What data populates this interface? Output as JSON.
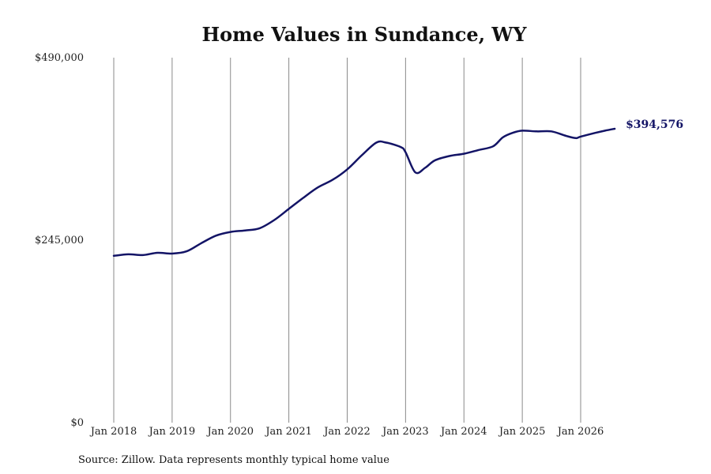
{
  "chart_data": {
    "type": "line",
    "title": "Home Values in Sundance, WY",
    "xlabel": "",
    "ylabel": "",
    "ylim": [
      0,
      490000
    ],
    "y_ticks": [
      {
        "value": 0,
        "label": "$0"
      },
      {
        "value": 245000,
        "label": "$245,000"
      },
      {
        "value": 490000,
        "label": "$490,000"
      }
    ],
    "x_range": [
      2018.0,
      2026.583
    ],
    "x_ticks": [
      {
        "value": 2018,
        "label": "Jan 2018"
      },
      {
        "value": 2019,
        "label": "Jan 2019"
      },
      {
        "value": 2020,
        "label": "Jan 2020"
      },
      {
        "value": 2021,
        "label": "Jan 2021"
      },
      {
        "value": 2022,
        "label": "Jan 2022"
      },
      {
        "value": 2023,
        "label": "Jan 2023"
      },
      {
        "value": 2024,
        "label": "Jan 2024"
      },
      {
        "value": 2025,
        "label": "Jan 2025"
      },
      {
        "value": 2026,
        "label": "Jan 2026"
      }
    ],
    "grid": {
      "vertical": true,
      "horizontal": false
    },
    "series": [
      {
        "name": "",
        "color": "#131466",
        "x": [
          2018.0,
          2018.25,
          2018.5,
          2018.75,
          2019.0,
          2019.25,
          2019.5,
          2019.75,
          2020.0,
          2020.25,
          2020.5,
          2020.75,
          2021.0,
          2021.25,
          2021.5,
          2021.75,
          2022.0,
          2022.25,
          2022.5,
          2022.667,
          2022.917,
          2023.0,
          2023.167,
          2023.333,
          2023.5,
          2023.75,
          2024.0,
          2024.25,
          2024.5,
          2024.667,
          2024.833,
          2025.0,
          2025.25,
          2025.5,
          2025.75,
          2025.917,
          2026.0,
          2026.25,
          2026.417,
          2026.583
        ],
        "y": [
          224000,
          226000,
          225000,
          228000,
          227000,
          230000,
          241000,
          251000,
          256000,
          258000,
          261000,
          272000,
          287000,
          302000,
          316000,
          326000,
          340000,
          359000,
          376000,
          376000,
          370000,
          363000,
          336000,
          342000,
          352000,
          358000,
          361000,
          366000,
          371000,
          383000,
          389000,
          392000,
          391000,
          391000,
          385000,
          382000,
          384000,
          389000,
          392000,
          394576
        ]
      }
    ],
    "end_label": "$394,576",
    "source": "Source: Zillow. Data represents monthly typical home value"
  }
}
